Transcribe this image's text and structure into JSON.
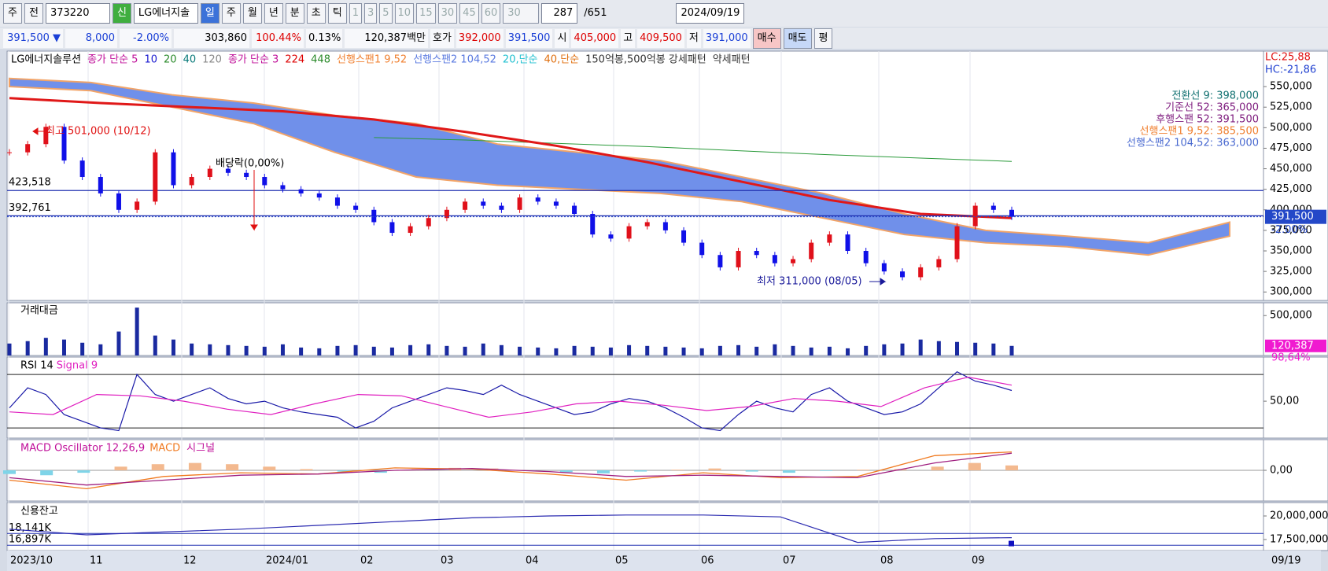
{
  "toolbar": {
    "tabs": [
      "주",
      "전"
    ],
    "code": "373220",
    "new": "신",
    "name": "LG에너지솔",
    "periods": [
      "일",
      "주",
      "월",
      "년",
      "분",
      "초",
      "틱"
    ],
    "intervals": [
      "1",
      "3",
      "5",
      "10",
      "15",
      "30",
      "45",
      "60"
    ],
    "interval_select": "30",
    "count": "287",
    "total": "/651",
    "date": "2024/09/19"
  },
  "quote": {
    "price": "391,500 ▼",
    "change": "8,000",
    "change_pct": "-2.00%",
    "volume": "303,860",
    "vol_ratio": "100.44%",
    "turnover": "0.13%",
    "amount": "120,387백만",
    "hoga_label": "호가",
    "ask": "392,000",
    "bid": "391,500",
    "open_label": "시",
    "open": "405,000",
    "high_label": "고",
    "high": "409,500",
    "low_label": "저",
    "low": "391,000",
    "buttons": [
      "매수",
      "매도",
      "평"
    ]
  },
  "price_panel": {
    "legend": [
      "LG에너지솔루션",
      "종가 단순 5",
      "10",
      "20",
      "40",
      "120",
      "종가 단순 3",
      "224",
      "448",
      "선행스팬1 9,52",
      "선행스팬2 104,52",
      "20,단순",
      "40,단순",
      "150억봉,500억봉 강세패턴",
      "약세패턴"
    ],
    "lc": "LC:25,88",
    "hc": "HC:-21,86",
    "info": [
      "전환선 9: 398,000",
      "기준선 52: 365,000",
      "후행스팬 52: 391,500",
      "선행스팬1 9,52: 385,500",
      "선행스팬2 104,52: 363,000"
    ],
    "ylim": [
      289700,
      593200
    ],
    "yticks": [
      {
        "value": 550000,
        "label": "550,000"
      },
      {
        "value": 525000,
        "label": "525,000"
      },
      {
        "value": 500000,
        "label": "500,000"
      },
      {
        "value": 475000,
        "label": "475,000"
      },
      {
        "value": 450000,
        "label": "450,000"
      },
      {
        "value": 425000,
        "label": "425,000"
      },
      {
        "value": 400000,
        "label": "400,000"
      },
      {
        "value": 375000,
        "label": "375,000"
      },
      {
        "value": 350000,
        "label": "350,000"
      },
      {
        "value": 325000,
        "label": "325,000"
      },
      {
        "value": 300000,
        "label": "300,000"
      }
    ],
    "current": {
      "value": 391500,
      "label": "391,500",
      "change": "-2.00%"
    },
    "hlines": [
      {
        "value": 423518,
        "label": "423,518"
      },
      {
        "value": 392761,
        "label": "392,761"
      }
    ],
    "annotations": {
      "high": "최고 501,000 (10/12)",
      "low": "최저 311,000 (08/05)",
      "dividend": "배당락(0,00%)"
    },
    "close": [
      470000,
      480000,
      501000,
      460000,
      440000,
      420000,
      400000,
      410000,
      470000,
      430000,
      440000,
      450000,
      445000,
      440000,
      430000,
      425000,
      420000,
      415000,
      405000,
      400000,
      385000,
      372000,
      380000,
      390000,
      400000,
      410000,
      405000,
      400000,
      415000,
      410000,
      405000,
      395000,
      370000,
      365000,
      380000,
      385000,
      375000,
      360000,
      345000,
      330000,
      350000,
      345000,
      335000,
      340000,
      360000,
      370000,
      350000,
      335000,
      325000,
      318000,
      330000,
      340000,
      380000,
      405000,
      400000,
      391500
    ],
    "ma_red": [
      536000,
      530000,
      525000,
      520000,
      510000,
      495000,
      478000,
      458000,
      435000,
      412000,
      395000,
      390000
    ],
    "ma_green": [
      null,
      null,
      null,
      null,
      488000,
      485000,
      481000,
      477000,
      472000,
      467000,
      463000,
      459000
    ],
    "span_top": [
      560000,
      555000,
      540000,
      530000,
      515000,
      505000,
      480000,
      470000,
      460000,
      440000,
      420000,
      395000,
      375000,
      368000,
      360000,
      385000
    ],
    "span_bottom": [
      550000,
      545000,
      525000,
      505000,
      470000,
      440000,
      430000,
      425000,
      420000,
      410000,
      390000,
      370000,
      360000,
      355000,
      345000,
      368000
    ]
  },
  "volume_panel": {
    "title": "거래대금",
    "ylim": [
      0,
      660000
    ],
    "yticks": [
      {
        "value": 500000,
        "label": "500,000"
      }
    ],
    "current": {
      "value": 120387,
      "label": "120,387"
    },
    "ratio": "98,64%",
    "values": [
      150000,
      180000,
      220000,
      200000,
      160000,
      140000,
      300000,
      600000,
      250000,
      200000,
      150000,
      140000,
      130000,
      120000,
      110000,
      140000,
      100000,
      90000,
      120000,
      130000,
      110000,
      100000,
      130000,
      140000,
      120000,
      110000,
      150000,
      130000,
      110000,
      100000,
      90000,
      120000,
      110000,
      100000,
      130000,
      120000,
      110000,
      100000,
      90000,
      120000,
      130000,
      110000,
      140000,
      120000,
      100000,
      110000,
      90000,
      120000,
      140000,
      150000,
      200000,
      180000,
      170000,
      160000,
      150000,
      120387
    ]
  },
  "rsi_panel": {
    "title": "RSI 14",
    "signal_name": "Signal 9",
    "ylim": [
      22.4,
      83
    ],
    "yticks": [
      {
        "value": 50,
        "label": "50,00"
      }
    ],
    "levels": [
      70,
      30
    ],
    "rsi": [
      45,
      60,
      55,
      40,
      35,
      30,
      28,
      70,
      55,
      50,
      55,
      60,
      52,
      48,
      50,
      45,
      42,
      40,
      38,
      30,
      35,
      45,
      50,
      55,
      60,
      58,
      55,
      62,
      55,
      50,
      45,
      40,
      42,
      48,
      52,
      50,
      45,
      38,
      30,
      28,
      40,
      50,
      45,
      42,
      55,
      60,
      50,
      45,
      40,
      42,
      48,
      60,
      72,
      65,
      62,
      58
    ],
    "signal": [
      42,
      40,
      55,
      54,
      50,
      44,
      40,
      48,
      55,
      54,
      46,
      38,
      42,
      48,
      50,
      47,
      43,
      46,
      52,
      50,
      46,
      60,
      68,
      62
    ]
  },
  "macd_panel": {
    "title": "MACD Oscillator 12,26,9",
    "macd_name": "MACD",
    "signal_name": "시그널",
    "ylim": [
      -25000,
      25000
    ],
    "yticks": [
      {
        "value": 0,
        "label": "0,00"
      }
    ],
    "oscillator": [
      -3000,
      -4000,
      -2000,
      3000,
      5000,
      6000,
      5000,
      3000,
      1000,
      -1000,
      -2000,
      1000,
      2000,
      1500,
      -500,
      -1500,
      -2500,
      -1000,
      500,
      1500,
      -1000,
      -2000,
      -500,
      500,
      1000,
      3000,
      6000,
      4000
    ],
    "macd": [
      -8000,
      -15000,
      -5000,
      -2000,
      -3000,
      2000,
      1000,
      -3000,
      -8000,
      -2000,
      -6000,
      -5000,
      12000,
      15000
    ],
    "signal": [
      -6000,
      -12000,
      -8000,
      -4000,
      -3000,
      0,
      1500,
      -1000,
      -5000,
      -4000,
      -5000,
      -6000,
      6000,
      14000
    ]
  },
  "credit_panel": {
    "title": "신용잔고",
    "ylim": [
      16330000,
      21420000
    ],
    "yticks": [
      {
        "value": 20000000,
        "label": "20,000,000"
      },
      {
        "value": 17500000,
        "label": "17,500,000"
      }
    ],
    "hlines": [
      {
        "value": 18141000,
        "label": "18,141K"
      },
      {
        "value": 16897000,
        "label": "16,897K"
      }
    ],
    "values": [
      18600000,
      18000000,
      18300000,
      18600000,
      19000000,
      19400000,
      19800000,
      20000000,
      20100000,
      20100000,
      19900000,
      17200000,
      17600000,
      17700000
    ]
  },
  "x_axis": {
    "months": [
      "2023/10",
      "11",
      "12",
      "2024/01",
      "02",
      "03",
      "04",
      "05",
      "06",
      "07",
      "08",
      "09"
    ],
    "last": "09/19"
  }
}
